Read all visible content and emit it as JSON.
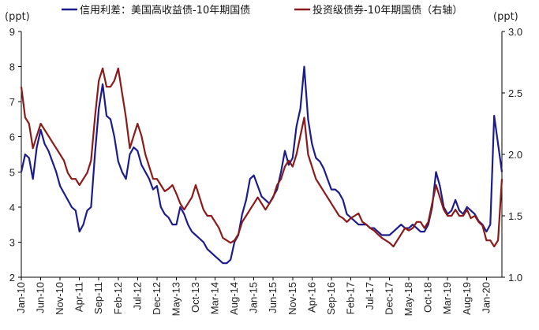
{
  "chart_data": {
    "type": "line",
    "left_unit": "(ppt)",
    "right_unit": "(ppt)",
    "left_axis": {
      "min": 2,
      "max": 9,
      "ticks": [
        "2",
        "3",
        "4",
        "5",
        "6",
        "7",
        "8",
        "9"
      ]
    },
    "right_axis": {
      "min": 1.0,
      "max": 3.0,
      "ticks": [
        "1.0",
        "1.5",
        "2.0",
        "2.5",
        "3.0"
      ]
    },
    "x_ticks": [
      "Jan-10",
      "Jun-10",
      "Nov-10",
      "Apr-11",
      "Sep-11",
      "Feb-12",
      "Jul-12",
      "Dec-12",
      "May-13",
      "Oct-13",
      "Mar-14",
      "Aug-14",
      "Jan-15",
      "Jun-15",
      "Nov-15",
      "Apr-16",
      "Sep-16",
      "Feb-17",
      "Jul-17",
      "Dec-17",
      "May-18",
      "Oct-18",
      "Mar-19",
      "Aug-19",
      "Jan-20"
    ],
    "x_start": "2010-01",
    "x_end": "2020-05",
    "series": [
      {
        "name": "信用利差：美国高收益债-10年期国债",
        "axis": "left",
        "color": "#1c1c8c",
        "x": [
          "2010-01",
          "2010-02",
          "2010-03",
          "2010-04",
          "2010-05",
          "2010-06",
          "2010-07",
          "2010-08",
          "2010-09",
          "2010-10",
          "2010-11",
          "2010-12",
          "2011-01",
          "2011-02",
          "2011-03",
          "2011-04",
          "2011-05",
          "2011-06",
          "2011-07",
          "2011-08",
          "2011-09",
          "2011-10",
          "2011-11",
          "2011-12",
          "2012-01",
          "2012-02",
          "2012-03",
          "2012-04",
          "2012-05",
          "2012-06",
          "2012-07",
          "2012-08",
          "2012-09",
          "2012-10",
          "2012-11",
          "2012-12",
          "2013-01",
          "2013-02",
          "2013-03",
          "2013-04",
          "2013-05",
          "2013-06",
          "2013-07",
          "2013-08",
          "2013-09",
          "2013-10",
          "2013-11",
          "2013-12",
          "2014-01",
          "2014-02",
          "2014-03",
          "2014-04",
          "2014-05",
          "2014-06",
          "2014-07",
          "2014-08",
          "2014-09",
          "2014-10",
          "2014-11",
          "2014-12",
          "2015-01",
          "2015-02",
          "2015-03",
          "2015-04",
          "2015-05",
          "2015-06",
          "2015-07",
          "2015-08",
          "2015-09",
          "2015-10",
          "2015-11",
          "2015-12",
          "2016-01",
          "2016-02",
          "2016-03",
          "2016-04",
          "2016-05",
          "2016-06",
          "2016-07",
          "2016-08",
          "2016-09",
          "2016-10",
          "2016-11",
          "2016-12",
          "2017-01",
          "2017-02",
          "2017-03",
          "2017-04",
          "2017-05",
          "2017-06",
          "2017-07",
          "2017-08",
          "2017-09",
          "2017-10",
          "2017-11",
          "2017-12",
          "2018-01",
          "2018-02",
          "2018-03",
          "2018-04",
          "2018-05",
          "2018-06",
          "2018-07",
          "2018-08",
          "2018-09",
          "2018-10",
          "2018-11",
          "2018-12",
          "2019-01",
          "2019-02",
          "2019-03",
          "2019-04",
          "2019-05",
          "2019-06",
          "2019-07",
          "2019-08",
          "2019-09",
          "2019-10",
          "2019-11",
          "2019-12",
          "2020-01",
          "2020-02",
          "2020-03",
          "2020-04",
          "2020-05"
        ],
        "values": [
          5.0,
          5.5,
          5.4,
          4.8,
          5.7,
          6.2,
          5.8,
          5.6,
          5.3,
          5.0,
          4.6,
          4.4,
          4.2,
          4.0,
          3.9,
          3.3,
          3.5,
          3.9,
          4.0,
          5.5,
          6.8,
          7.5,
          6.6,
          6.5,
          6.0,
          5.3,
          5.0,
          4.8,
          5.5,
          5.7,
          5.6,
          5.2,
          5.0,
          4.8,
          4.5,
          4.6,
          4.0,
          3.8,
          3.7,
          3.5,
          3.5,
          4.0,
          3.8,
          3.5,
          3.3,
          3.2,
          3.1,
          3.0,
          2.8,
          2.7,
          2.6,
          2.5,
          2.4,
          2.4,
          2.5,
          3.0,
          3.2,
          3.8,
          4.2,
          4.8,
          4.9,
          4.6,
          4.3,
          4.2,
          4.1,
          4.3,
          4.5,
          5.0,
          5.6,
          5.2,
          5.4,
          6.3,
          6.8,
          8.0,
          6.5,
          5.8,
          5.4,
          5.3,
          5.1,
          4.8,
          4.5,
          4.5,
          4.4,
          4.2,
          3.8,
          3.7,
          3.6,
          3.5,
          3.5,
          3.5,
          3.4,
          3.4,
          3.3,
          3.2,
          3.2,
          3.2,
          3.3,
          3.4,
          3.5,
          3.4,
          3.4,
          3.5,
          3.4,
          3.3,
          3.3,
          3.5,
          4.0,
          5.0,
          4.6,
          4.0,
          3.8,
          3.9,
          4.2,
          3.9,
          3.8,
          4.0,
          3.9,
          3.8,
          3.6,
          3.5,
          3.3,
          3.5,
          6.6,
          5.8,
          5.0
        ]
      },
      {
        "name": "投资级债券-10年期国债（右轴）",
        "axis": "right",
        "color": "#8b1a1a",
        "x": [
          "2010-01",
          "2010-02",
          "2010-03",
          "2010-04",
          "2010-05",
          "2010-06",
          "2010-07",
          "2010-08",
          "2010-09",
          "2010-10",
          "2010-11",
          "2010-12",
          "2011-01",
          "2011-02",
          "2011-03",
          "2011-04",
          "2011-05",
          "2011-06",
          "2011-07",
          "2011-08",
          "2011-09",
          "2011-10",
          "2011-11",
          "2011-12",
          "2012-01",
          "2012-02",
          "2012-03",
          "2012-04",
          "2012-05",
          "2012-06",
          "2012-07",
          "2012-08",
          "2012-09",
          "2012-10",
          "2012-11",
          "2012-12",
          "2013-01",
          "2013-02",
          "2013-03",
          "2013-04",
          "2013-05",
          "2013-06",
          "2013-07",
          "2013-08",
          "2013-09",
          "2013-10",
          "2013-11",
          "2013-12",
          "2014-01",
          "2014-02",
          "2014-03",
          "2014-04",
          "2014-05",
          "2014-06",
          "2014-07",
          "2014-08",
          "2014-09",
          "2014-10",
          "2014-11",
          "2014-12",
          "2015-01",
          "2015-02",
          "2015-03",
          "2015-04",
          "2015-05",
          "2015-06",
          "2015-07",
          "2015-08",
          "2015-09",
          "2015-10",
          "2015-11",
          "2015-12",
          "2016-01",
          "2016-02",
          "2016-03",
          "2016-04",
          "2016-05",
          "2016-06",
          "2016-07",
          "2016-08",
          "2016-09",
          "2016-10",
          "2016-11",
          "2016-12",
          "2017-01",
          "2017-02",
          "2017-03",
          "2017-04",
          "2017-05",
          "2017-06",
          "2017-07",
          "2017-08",
          "2017-09",
          "2017-10",
          "2017-11",
          "2017-12",
          "2018-01",
          "2018-02",
          "2018-03",
          "2018-04",
          "2018-05",
          "2018-06",
          "2018-07",
          "2018-08",
          "2018-09",
          "2018-10",
          "2018-11",
          "2018-12",
          "2019-01",
          "2019-02",
          "2019-03",
          "2019-04",
          "2019-05",
          "2019-06",
          "2019-07",
          "2019-08",
          "2019-09",
          "2019-10",
          "2019-11",
          "2019-12",
          "2020-01",
          "2020-02",
          "2020-03",
          "2020-04",
          "2020-05"
        ],
        "values": [
          2.55,
          2.3,
          2.25,
          2.05,
          2.15,
          2.25,
          2.2,
          2.15,
          2.1,
          2.05,
          2.0,
          1.95,
          1.85,
          1.8,
          1.8,
          1.75,
          1.8,
          1.85,
          1.95,
          2.3,
          2.6,
          2.7,
          2.55,
          2.55,
          2.6,
          2.7,
          2.5,
          2.3,
          2.05,
          2.15,
          2.25,
          2.15,
          2.0,
          1.9,
          1.8,
          1.8,
          1.75,
          1.7,
          1.72,
          1.75,
          1.68,
          1.6,
          1.55,
          1.6,
          1.65,
          1.75,
          1.65,
          1.55,
          1.5,
          1.5,
          1.45,
          1.4,
          1.32,
          1.3,
          1.28,
          1.3,
          1.35,
          1.45,
          1.5,
          1.55,
          1.6,
          1.65,
          1.6,
          1.55,
          1.6,
          1.65,
          1.75,
          1.8,
          1.9,
          1.95,
          1.9,
          2.0,
          2.15,
          2.3,
          2.0,
          1.9,
          1.8,
          1.75,
          1.7,
          1.65,
          1.6,
          1.55,
          1.5,
          1.48,
          1.45,
          1.48,
          1.5,
          1.52,
          1.45,
          1.43,
          1.4,
          1.38,
          1.35,
          1.32,
          1.3,
          1.28,
          1.25,
          1.3,
          1.35,
          1.4,
          1.38,
          1.4,
          1.45,
          1.45,
          1.4,
          1.45,
          1.6,
          1.75,
          1.65,
          1.55,
          1.5,
          1.5,
          1.55,
          1.5,
          1.5,
          1.55,
          1.48,
          1.5,
          1.45,
          1.42,
          1.3,
          1.3,
          1.25,
          1.3,
          1.8
        ]
      }
    ]
  }
}
